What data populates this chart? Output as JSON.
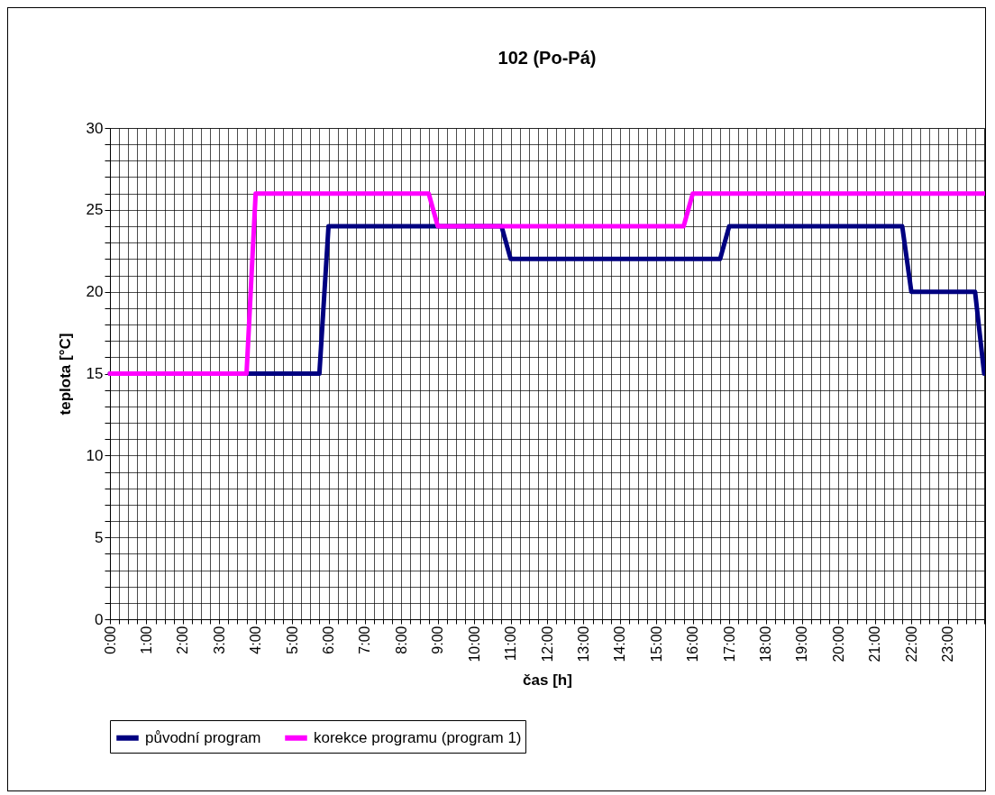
{
  "chart_data": {
    "type": "line",
    "title": "102 (Po-Pá)",
    "xlabel": "čas [h]",
    "ylabel": "teplota [°C]",
    "series": [
      {
        "name": "původní program",
        "color": "#000080",
        "x": [
          0,
          5.75,
          6,
          10.75,
          11,
          16.75,
          17,
          21.75,
          22,
          23.75,
          24
        ],
        "values": [
          15,
          15,
          24,
          24,
          22,
          22,
          24,
          24,
          20,
          20,
          15
        ]
      },
      {
        "name": "korekce programu (program 1)",
        "color": "#ff00ff",
        "x": [
          0,
          3.75,
          4,
          8.75,
          9,
          15.75,
          16,
          24
        ],
        "values": [
          15,
          15,
          26,
          26,
          24,
          24,
          26,
          26
        ]
      }
    ],
    "xlim": [
      0,
      24
    ],
    "xticks": [
      {
        "value": 0,
        "label": "0:00"
      },
      {
        "value": 0.25,
        "label": null
      },
      {
        "value": 0.5,
        "label": null
      },
      {
        "value": 0.75,
        "label": null
      },
      {
        "value": 1,
        "label": "1:00"
      },
      {
        "value": 1.25,
        "label": null
      },
      {
        "value": 1.5,
        "label": null
      },
      {
        "value": 1.75,
        "label": null
      },
      {
        "value": 2,
        "label": "2:00"
      },
      {
        "value": 2.25,
        "label": null
      },
      {
        "value": 2.5,
        "label": null
      },
      {
        "value": 2.75,
        "label": null
      },
      {
        "value": 3,
        "label": "3:00"
      },
      {
        "value": 3.25,
        "label": null
      },
      {
        "value": 3.5,
        "label": null
      },
      {
        "value": 3.75,
        "label": null
      },
      {
        "value": 4,
        "label": "4:00"
      },
      {
        "value": 4.25,
        "label": null
      },
      {
        "value": 4.5,
        "label": null
      },
      {
        "value": 4.75,
        "label": null
      },
      {
        "value": 5,
        "label": "5:00"
      },
      {
        "value": 5.25,
        "label": null
      },
      {
        "value": 5.5,
        "label": null
      },
      {
        "value": 5.75,
        "label": null
      },
      {
        "value": 6,
        "label": "6:00"
      },
      {
        "value": 6.25,
        "label": null
      },
      {
        "value": 6.5,
        "label": null
      },
      {
        "value": 6.75,
        "label": null
      },
      {
        "value": 7,
        "label": "7:00"
      },
      {
        "value": 7.25,
        "label": null
      },
      {
        "value": 7.5,
        "label": null
      },
      {
        "value": 7.75,
        "label": null
      },
      {
        "value": 8,
        "label": "8:00"
      },
      {
        "value": 8.25,
        "label": null
      },
      {
        "value": 8.5,
        "label": null
      },
      {
        "value": 8.75,
        "label": null
      },
      {
        "value": 9,
        "label": "9:00"
      },
      {
        "value": 9.25,
        "label": null
      },
      {
        "value": 9.5,
        "label": null
      },
      {
        "value": 9.75,
        "label": null
      },
      {
        "value": 10,
        "label": "10:00"
      },
      {
        "value": 10.25,
        "label": null
      },
      {
        "value": 10.5,
        "label": null
      },
      {
        "value": 10.75,
        "label": null
      },
      {
        "value": 11,
        "label": "11:00"
      },
      {
        "value": 11.25,
        "label": null
      },
      {
        "value": 11.5,
        "label": null
      },
      {
        "value": 11.75,
        "label": null
      },
      {
        "value": 12,
        "label": "12:00"
      },
      {
        "value": 12.25,
        "label": null
      },
      {
        "value": 12.5,
        "label": null
      },
      {
        "value": 12.75,
        "label": null
      },
      {
        "value": 13,
        "label": "13:00"
      },
      {
        "value": 13.25,
        "label": null
      },
      {
        "value": 13.5,
        "label": null
      },
      {
        "value": 13.75,
        "label": null
      },
      {
        "value": 14,
        "label": "14:00"
      },
      {
        "value": 14.25,
        "label": null
      },
      {
        "value": 14.5,
        "label": null
      },
      {
        "value": 14.75,
        "label": null
      },
      {
        "value": 15,
        "label": "15:00"
      },
      {
        "value": 15.25,
        "label": null
      },
      {
        "value": 15.5,
        "label": null
      },
      {
        "value": 15.75,
        "label": null
      },
      {
        "value": 16,
        "label": "16:00"
      },
      {
        "value": 16.25,
        "label": null
      },
      {
        "value": 16.5,
        "label": null
      },
      {
        "value": 16.75,
        "label": null
      },
      {
        "value": 17,
        "label": "17:00"
      },
      {
        "value": 17.25,
        "label": null
      },
      {
        "value": 17.5,
        "label": null
      },
      {
        "value": 17.75,
        "label": null
      },
      {
        "value": 18,
        "label": "18:00"
      },
      {
        "value": 18.25,
        "label": null
      },
      {
        "value": 18.5,
        "label": null
      },
      {
        "value": 18.75,
        "label": null
      },
      {
        "value": 19,
        "label": "19:00"
      },
      {
        "value": 19.25,
        "label": null
      },
      {
        "value": 19.5,
        "label": null
      },
      {
        "value": 19.75,
        "label": null
      },
      {
        "value": 20,
        "label": "20:00"
      },
      {
        "value": 20.25,
        "label": null
      },
      {
        "value": 20.5,
        "label": null
      },
      {
        "value": 20.75,
        "label": null
      },
      {
        "value": 21,
        "label": "21:00"
      },
      {
        "value": 21.25,
        "label": null
      },
      {
        "value": 21.5,
        "label": null
      },
      {
        "value": 21.75,
        "label": null
      },
      {
        "value": 22,
        "label": "22:00"
      },
      {
        "value": 22.25,
        "label": null
      },
      {
        "value": 22.5,
        "label": null
      },
      {
        "value": 22.75,
        "label": null
      },
      {
        "value": 23,
        "label": "23:00"
      },
      {
        "value": 23.25,
        "label": null
      },
      {
        "value": 23.5,
        "label": null
      },
      {
        "value": 23.75,
        "label": null
      },
      {
        "value": 24,
        "label": null
      }
    ],
    "ylim": [
      0,
      30
    ],
    "yticks": [
      0,
      {
        "value": 1,
        "label": null
      },
      {
        "value": 2,
        "label": null
      },
      {
        "value": 3,
        "label": null
      },
      {
        "value": 4,
        "label": null
      },
      5,
      {
        "value": 6,
        "label": null
      },
      {
        "value": 7,
        "label": null
      },
      {
        "value": 8,
        "label": null
      },
      {
        "value": 9,
        "label": null
      },
      10,
      {
        "value": 11,
        "label": null
      },
      {
        "value": 12,
        "label": null
      },
      {
        "value": 13,
        "label": null
      },
      {
        "value": 14,
        "label": null
      },
      15,
      {
        "value": 16,
        "label": null
      },
      {
        "value": 17,
        "label": null
      },
      {
        "value": 18,
        "label": null
      },
      {
        "value": 19,
        "label": null
      },
      20,
      {
        "value": 21,
        "label": null
      },
      {
        "value": 22,
        "label": null
      },
      {
        "value": 23,
        "label": null
      },
      {
        "value": 24,
        "label": null
      },
      25,
      {
        "value": 26,
        "label": null
      },
      {
        "value": 27,
        "label": null
      },
      {
        "value": 28,
        "label": null
      },
      {
        "value": 29,
        "label": null
      },
      30
    ],
    "grid": true,
    "legend": "bottom",
    "line_style": "solid",
    "marker": "none"
  }
}
